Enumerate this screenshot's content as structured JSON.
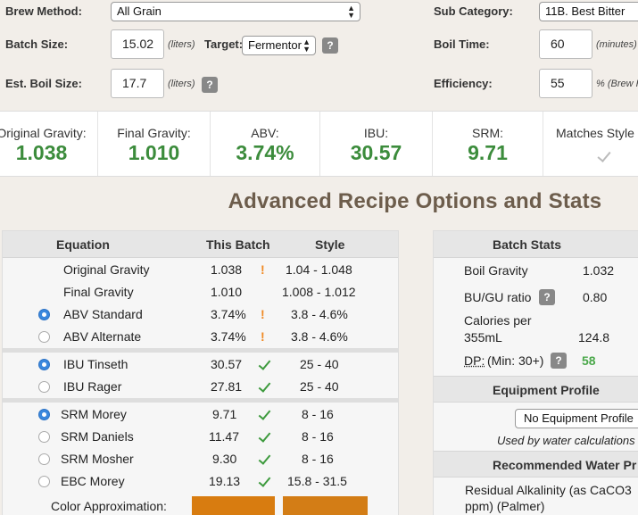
{
  "form": {
    "brew_method_label": "Brew Method:",
    "brew_method_value": "All Grain",
    "batch_size_label": "Batch Size:",
    "batch_size_value": "15.02",
    "batch_size_unit": "(liters)",
    "target_label": "Target:",
    "target_value": "Fermentor",
    "est_boil_size_label": "Est. Boil Size:",
    "est_boil_size_value": "17.7",
    "est_boil_size_unit": "(liters)",
    "sub_category_label": "Sub Category:",
    "sub_category_value": "11B. Best Bitter",
    "boil_time_label": "Boil Time:",
    "boil_time_value": "60",
    "boil_time_unit": "(minutes)",
    "efficiency_label": "Efficiency:",
    "efficiency_value": "55",
    "efficiency_unit": "% (Brew H",
    "help_glyph": "?"
  },
  "stats": [
    {
      "label": "Original Gravity:",
      "value": "1.038"
    },
    {
      "label": "Final Gravity:",
      "value": "1.010"
    },
    {
      "label": "ABV:",
      "value": "3.74%"
    },
    {
      "label": "IBU:",
      "value": "30.57"
    },
    {
      "label": "SRM:",
      "value": "9.71"
    },
    {
      "label": "Matches Style",
      "value": ""
    }
  ],
  "heading": "Advanced Recipe Options and Stats",
  "equation_table": {
    "headers": [
      "Equation",
      "This Batch",
      "Style"
    ],
    "rows": [
      {
        "name": "Original Gravity",
        "batch": "1.038",
        "style": "1.04 - 1.048",
        "mark": "!"
      },
      {
        "name": "Final Gravity",
        "batch": "1.010",
        "style": "1.008 - 1.012",
        "mark": ""
      },
      {
        "name": "ABV Standard",
        "batch": "3.74%",
        "style": "3.8 - 4.6%",
        "mark": "!"
      },
      {
        "name": "ABV Alternate",
        "batch": "3.74%",
        "style": "3.8 - 4.6%",
        "mark": "!"
      },
      {
        "name": "IBU Tinseth",
        "batch": "30.57",
        "style": "25 - 40",
        "mark": "check"
      },
      {
        "name": "IBU Rager",
        "batch": "27.81",
        "style": "25 - 40",
        "mark": "check"
      },
      {
        "name": "SRM Morey",
        "batch": "9.71",
        "style": "8 - 16",
        "mark": "check"
      },
      {
        "name": "SRM Daniels",
        "batch": "11.47",
        "style": "8 - 16",
        "mark": "check"
      },
      {
        "name": "SRM Mosher",
        "batch": "9.30",
        "style": "8 - 16",
        "mark": "check"
      },
      {
        "name": "EBC Morey",
        "batch": "19.13",
        "style": "15.8 - 31.5",
        "mark": "check"
      }
    ],
    "color_label": "Color Approximation:",
    "batch_color": "#d87c10",
    "style_color": "#d37d16"
  },
  "batch_stats": {
    "title": "Batch Stats",
    "boil_gravity_label": "Boil Gravity",
    "boil_gravity_value": "1.032",
    "bugu_label": "BU/GU ratio",
    "bugu_value": "0.80",
    "calories_label_1": "Calories per",
    "calories_label_2": "355mL",
    "calories_value": "124.8",
    "dp_label": "DP:",
    "dp_min": "(Min: 30+)",
    "dp_value": "58",
    "equipment_title": "Equipment Profile",
    "equipment_value": "No Equipment Profile",
    "equipment_note": "Used by water calculations",
    "water_title": "Recommended Water Pr",
    "residual_line_1": "Residual Alkalinity (as CaCO3",
    "residual_line_2": "ppm) (Palmer)"
  }
}
